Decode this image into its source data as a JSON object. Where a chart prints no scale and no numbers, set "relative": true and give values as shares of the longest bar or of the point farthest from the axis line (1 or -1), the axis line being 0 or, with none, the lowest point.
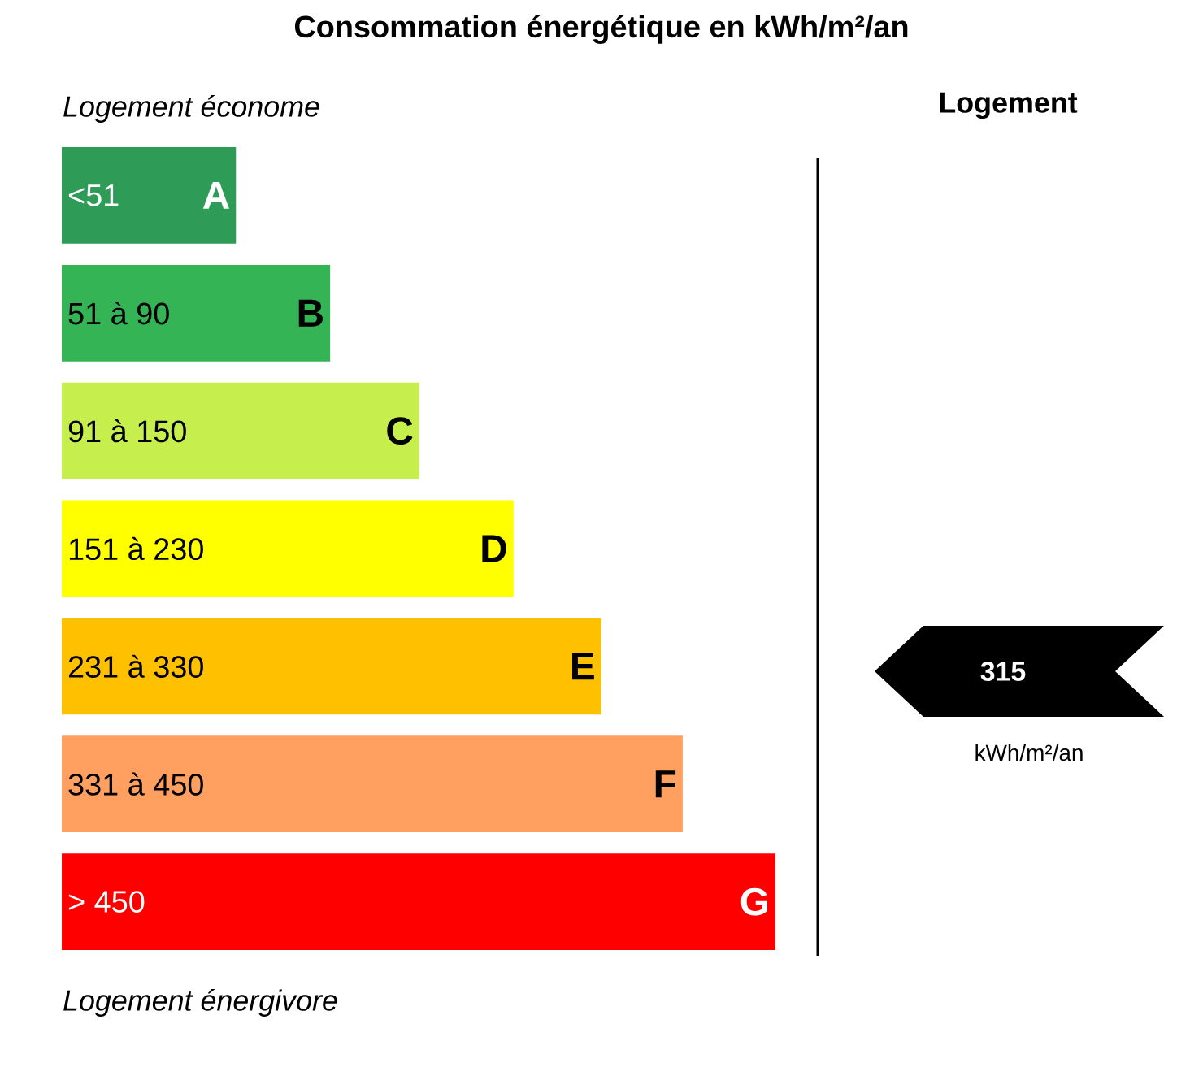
{
  "chart_data": {
    "type": "bar",
    "orientation": "horizontal",
    "relative": true,
    "title": "Consommation énergétique en kWh/m²/an",
    "categories": [
      "A",
      "B",
      "C",
      "D",
      "E",
      "F",
      "G"
    ],
    "values": [
      0.244,
      0.376,
      0.501,
      0.633,
      0.756,
      0.87,
      1.0
    ],
    "colors": [
      "#2e9b57",
      "#34b455",
      "#c6ef4e",
      "#ffff00",
      "#ffc000",
      "#ffa060",
      "#ff0000"
    ],
    "annotations": [
      "<51",
      "51 à 90",
      "91 à 150",
      "151 à 230",
      "231 à 330",
      "331 à 450",
      "> 450",
      "Logement économe",
      "Logement énergivore",
      "Logement",
      "315",
      "kWh/m²/an"
    ]
  }
}
